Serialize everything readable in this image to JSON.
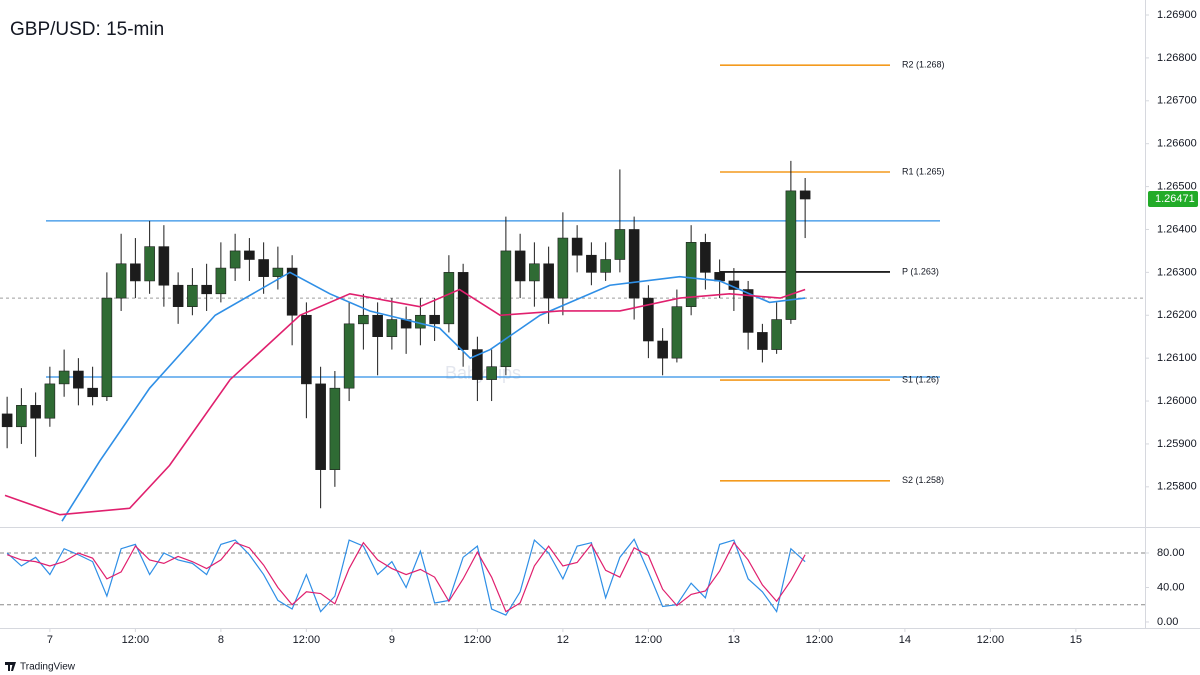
{
  "chart_data": [
    {
      "type": "candlestick",
      "title": "GBP/USD: 15-min",
      "watermark": "BabyPips",
      "x": [
        -6,
        -4,
        -2,
        0,
        2,
        4,
        6,
        8,
        10,
        12,
        14,
        16,
        18,
        20,
        22,
        24,
        26,
        28,
        30,
        32,
        34,
        36,
        38,
        40,
        42,
        44,
        46,
        48,
        50,
        52,
        54,
        56,
        58,
        60,
        62,
        64,
        66,
        68,
        70,
        72,
        74,
        76,
        78,
        80,
        82,
        84,
        86,
        88,
        90,
        92,
        94,
        96,
        98,
        100,
        102,
        104,
        106
      ],
      "open": [
        1.2597,
        1.2594,
        1.2599,
        1.2596,
        1.2604,
        1.2607,
        1.2603,
        1.2601,
        1.2624,
        1.2632,
        1.2628,
        1.2636,
        1.2627,
        1.2622,
        1.2627,
        1.2625,
        1.2631,
        1.2635,
        1.2633,
        1.2629,
        1.2631,
        1.262,
        1.2604,
        1.2584,
        1.2603,
        1.2618,
        1.262,
        1.2615,
        1.2619,
        1.2617,
        1.262,
        1.2618,
        1.263,
        1.2612,
        1.2605,
        1.2608,
        1.2635,
        1.2628,
        1.2632,
        1.2624,
        1.2638,
        1.2634,
        1.263,
        1.2633,
        1.264,
        1.2624,
        1.2614,
        1.261,
        1.2622,
        1.2637,
        1.263,
        1.2628,
        1.2626,
        1.2616,
        1.2612,
        1.2619,
        1.2649
      ],
      "high": [
        1.2601,
        1.2603,
        1.2602,
        1.2608,
        1.2612,
        1.261,
        1.2608,
        1.263,
        1.2639,
        1.2638,
        1.2642,
        1.2641,
        1.263,
        1.2631,
        1.2632,
        1.2637,
        1.2639,
        1.2638,
        1.2637,
        1.2636,
        1.2634,
        1.2623,
        1.2608,
        1.2607,
        1.2623,
        1.2625,
        1.2623,
        1.2624,
        1.2622,
        1.2624,
        1.2624,
        1.2634,
        1.2632,
        1.2615,
        1.2612,
        1.2643,
        1.2639,
        1.2637,
        1.2636,
        1.2644,
        1.2641,
        1.2637,
        1.2637,
        1.2654,
        1.2643,
        1.2627,
        1.2617,
        1.2626,
        1.2641,
        1.2639,
        1.2633,
        1.2631,
        1.2628,
        1.2618,
        1.2623,
        1.2656,
        1.2652
      ],
      "low": [
        1.2589,
        1.259,
        1.2587,
        1.2594,
        1.2601,
        1.2599,
        1.2599,
        1.26,
        1.2621,
        1.2624,
        1.2625,
        1.2622,
        1.2618,
        1.262,
        1.2621,
        1.2623,
        1.2628,
        1.2628,
        1.2625,
        1.2626,
        1.2613,
        1.2596,
        1.2575,
        1.258,
        1.26,
        1.2612,
        1.2606,
        1.2612,
        1.2611,
        1.2613,
        1.2614,
        1.2616,
        1.2608,
        1.26,
        1.26,
        1.2606,
        1.2624,
        1.2622,
        1.2618,
        1.262,
        1.263,
        1.2627,
        1.2628,
        1.263,
        1.2619,
        1.261,
        1.2606,
        1.2609,
        1.262,
        1.2626,
        1.2624,
        1.2621,
        1.2612,
        1.2609,
        1.2611,
        1.2618,
        1.2638
      ],
      "close": [
        1.2594,
        1.2599,
        1.2596,
        1.2604,
        1.2607,
        1.2603,
        1.2601,
        1.2624,
        1.2632,
        1.2628,
        1.2636,
        1.2627,
        1.2622,
        1.2627,
        1.2625,
        1.2631,
        1.2635,
        1.2633,
        1.2629,
        1.2631,
        1.262,
        1.2604,
        1.2584,
        1.2603,
        1.2618,
        1.262,
        1.2615,
        1.2619,
        1.2617,
        1.262,
        1.2618,
        1.263,
        1.2612,
        1.2605,
        1.2608,
        1.2635,
        1.2628,
        1.2632,
        1.2624,
        1.2638,
        1.2634,
        1.263,
        1.2633,
        1.264,
        1.2624,
        1.2614,
        1.261,
        1.2622,
        1.2637,
        1.263,
        1.2628,
        1.2626,
        1.2616,
        1.2612,
        1.2619,
        1.2649,
        1.26471
      ],
      "up_color": "#2f6b34",
      "down_color": "#1c1c1c",
      "series": [
        {
          "color": "#2f8fe6",
          "x": [
            1.7,
            7,
            14,
            23.2,
            33.7,
            39.3,
            44.9,
            54.7,
            59,
            61.8,
            68.8,
            78.6,
            88.4,
            94,
            101,
            106
          ],
          "values": [
            1.2572,
            1.2586,
            1.2603,
            1.262,
            1.263,
            1.2625,
            1.2621,
            1.2617,
            1.261,
            1.2612,
            1.262,
            1.2627,
            1.2629,
            1.2628,
            1.2623,
            1.2624
          ]
        },
        {
          "color": "#e0206e",
          "x": [
            -6.3,
            1.4,
            11.2,
            16.8,
            25.3,
            35.1,
            42.1,
            51.9,
            57.5,
            63.2,
            71.6,
            80,
            88.4,
            95.4,
            102.5,
            106
          ],
          "values": [
            1.2578,
            1.25735,
            1.2575,
            1.2585,
            1.2605,
            1.262,
            1.2625,
            1.2622,
            1.2626,
            1.262,
            1.2621,
            1.2621,
            1.2624,
            1.2625,
            1.2624,
            1.2626
          ]
        }
      ],
      "hlines": [
        {
          "value": 1.2642,
          "color": "#2f8fe6"
        },
        {
          "value": 1.26056,
          "color": "#2f8fe6"
        }
      ],
      "dashed_line": {
        "value": 1.2624,
        "color": "#9e9e9e"
      },
      "pivots": [
        {
          "label": "R2 (1.268)",
          "value": 1.26783,
          "color": "#f39a1e"
        },
        {
          "label": "R1 (1.265)",
          "value": 1.26534,
          "color": "#f39a1e"
        },
        {
          "label": "P (1.263)",
          "value": 1.26301,
          "color": "#000000"
        },
        {
          "label": "S1 (1.26)",
          "value": 1.26049,
          "color": "#f39a1e"
        },
        {
          "label": "S2 (1.258)",
          "value": 1.25814,
          "color": "#f39a1e"
        }
      ],
      "last_price": {
        "value": 1.26471,
        "color": "#22ab28"
      },
      "xlim": [
        -7,
        153.7
      ],
      "ylim": [
        1.25711,
        1.26935
      ],
      "yticks": [
        {
          "value": 1.269,
          "label": "1.26900"
        },
        {
          "value": 1.268,
          "label": "1.26800"
        },
        {
          "value": 1.267,
          "label": "1.26700"
        },
        {
          "value": 1.266,
          "label": "1.26600"
        },
        {
          "value": 1.265,
          "label": "1.26500"
        },
        {
          "value": 1.264,
          "label": "1.26400"
        },
        {
          "value": 1.263,
          "label": "1.26300"
        },
        {
          "value": 1.262,
          "label": "1.26200"
        },
        {
          "value": 1.261,
          "label": "1.26100"
        },
        {
          "value": 1.26,
          "label": "1.26000"
        },
        {
          "value": 1.259,
          "label": "1.25900"
        },
        {
          "value": 1.258,
          "label": "1.25800"
        }
      ],
      "xticks": [
        {
          "value": 0,
          "label": "7"
        },
        {
          "value": 12,
          "label": "12:00"
        },
        {
          "value": 24,
          "label": "8"
        },
        {
          "value": 36,
          "label": "12:00"
        },
        {
          "value": 48,
          "label": "9"
        },
        {
          "value": 60,
          "label": "12:00"
        },
        {
          "value": 72,
          "label": "12"
        },
        {
          "value": 84,
          "label": "12:00"
        },
        {
          "value": 96,
          "label": "13"
        },
        {
          "value": 108,
          "label": "12:00"
        },
        {
          "value": 120,
          "label": "14"
        },
        {
          "value": 132,
          "label": "12:00"
        },
        {
          "value": 144,
          "label": "15"
        }
      ]
    },
    {
      "type": "stochastic",
      "ylim": [
        -7,
        106.7
      ],
      "yticks": [
        {
          "value": 80,
          "label": "80.00"
        },
        {
          "value": 40,
          "label": "40.00"
        },
        {
          "value": 0,
          "label": "0.00"
        }
      ],
      "bands": [
        20,
        80
      ],
      "series": [
        {
          "color": "#2f8fe6",
          "values": [
            80,
            65,
            75,
            55,
            85,
            78,
            70,
            30,
            85,
            90,
            55,
            80,
            72,
            68,
            55,
            90,
            95,
            78,
            55,
            25,
            15,
            55,
            12,
            30,
            95,
            88,
            55,
            70,
            40,
            82,
            22,
            25,
            75,
            88,
            15,
            8,
            35,
            95,
            80,
            50,
            88,
            92,
            28,
            75,
            96,
            58,
            18,
            20,
            45,
            28,
            90,
            95,
            50,
            35,
            12,
            85,
            70
          ]
        },
        {
          "color": "#e0206e",
          "values": [
            78,
            72,
            70,
            65,
            70,
            80,
            74,
            50,
            58,
            88,
            72,
            68,
            76,
            70,
            62,
            72,
            92,
            86,
            66,
            40,
            20,
            35,
            33,
            21,
            62,
            92,
            72,
            62,
            55,
            61,
            52,
            24,
            50,
            81,
            52,
            12,
            22,
            65,
            88,
            65,
            69,
            90,
            60,
            52,
            86,
            77,
            38,
            19,
            32,
            36,
            59,
            92,
            72,
            43,
            24,
            48,
            78
          ]
        }
      ]
    }
  ],
  "footer": {
    "brand": "TradingView"
  }
}
